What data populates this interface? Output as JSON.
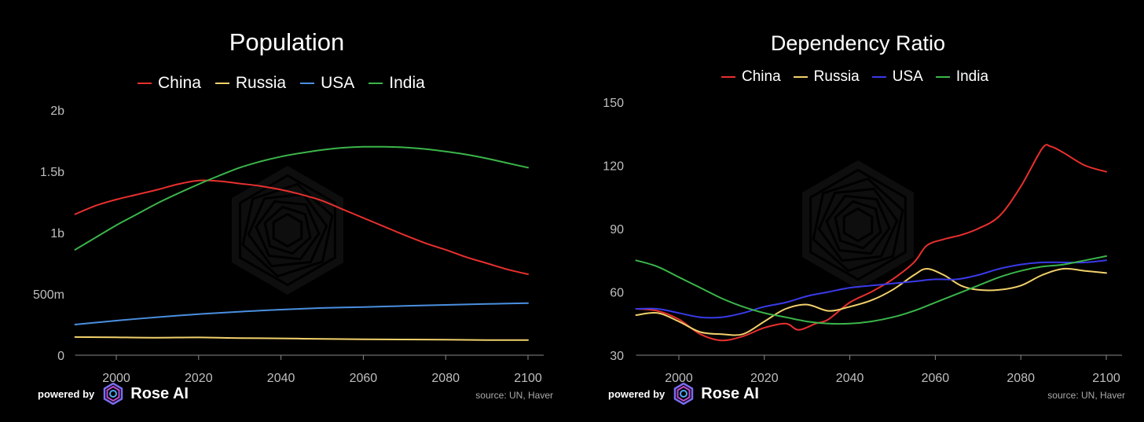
{
  "chart_data": [
    {
      "type": "line",
      "title": "Population",
      "xlabel": "",
      "ylabel": "",
      "xlim": [
        1990,
        2104
      ],
      "ylim": [
        0,
        2000
      ],
      "x_ticks": [
        2000,
        2020,
        2040,
        2060,
        2080,
        2100
      ],
      "y_ticks": [
        0,
        500,
        1000,
        1500,
        2000
      ],
      "y_tick_labels": [
        "0",
        "500m",
        "1b",
        "1.5b",
        "2b"
      ],
      "x_tick_labels": [
        "2000",
        "2020",
        "2040",
        "2060",
        "2080",
        "2100"
      ],
      "series": [
        {
          "name": "China",
          "color": "#e8302e",
          "x": [
            1990,
            1995,
            2000,
            2005,
            2010,
            2015,
            2020,
            2025,
            2030,
            2035,
            2040,
            2045,
            2050,
            2055,
            2060,
            2065,
            2070,
            2075,
            2080,
            2085,
            2090,
            2095,
            2100
          ],
          "values": [
            1150,
            1220,
            1270,
            1310,
            1350,
            1395,
            1425,
            1420,
            1400,
            1380,
            1350,
            1310,
            1260,
            1190,
            1120,
            1050,
            980,
            915,
            860,
            800,
            750,
            700,
            660
          ]
        },
        {
          "name": "Russia",
          "color": "#f2d16b",
          "x": [
            1990,
            2000,
            2010,
            2020,
            2030,
            2040,
            2050,
            2060,
            2070,
            2080,
            2090,
            2100
          ],
          "values": [
            148,
            146,
            143,
            145,
            140,
            137,
            133,
            130,
            128,
            126,
            124,
            123
          ]
        },
        {
          "name": "USA",
          "color": "#4a8fe0",
          "x": [
            1990,
            2000,
            2010,
            2020,
            2030,
            2040,
            2050,
            2060,
            2070,
            2080,
            2090,
            2100
          ],
          "values": [
            250,
            282,
            310,
            335,
            355,
            372,
            385,
            393,
            402,
            410,
            418,
            425
          ]
        },
        {
          "name": "India",
          "color": "#3bb54a",
          "x": [
            1990,
            1995,
            2000,
            2005,
            2010,
            2015,
            2020,
            2025,
            2030,
            2035,
            2040,
            2045,
            2050,
            2055,
            2060,
            2065,
            2070,
            2075,
            2080,
            2085,
            2090,
            2095,
            2100
          ],
          "values": [
            860,
            960,
            1060,
            1150,
            1240,
            1320,
            1395,
            1465,
            1530,
            1580,
            1620,
            1650,
            1675,
            1692,
            1700,
            1700,
            1695,
            1682,
            1662,
            1637,
            1605,
            1567,
            1530
          ]
        }
      ],
      "legend": "top"
    },
    {
      "type": "line",
      "title": "Dependency Ratio",
      "xlabel": "",
      "ylabel": "",
      "xlim": [
        1990,
        2102
      ],
      "ylim": [
        30,
        150
      ],
      "x_ticks": [
        2000,
        2020,
        2040,
        2060,
        2080,
        2100
      ],
      "y_ticks": [
        30,
        60,
        90,
        120,
        150
      ],
      "y_tick_labels": [
        "30",
        "60",
        "90",
        "120",
        "150"
      ],
      "x_tick_labels": [
        "2000",
        "2020",
        "2040",
        "2060",
        "2080",
        "2100"
      ],
      "series": [
        {
          "name": "China",
          "color": "#e8302e",
          "x": [
            1990,
            1995,
            2000,
            2005,
            2010,
            2015,
            2020,
            2025,
            2028,
            2032,
            2035,
            2040,
            2045,
            2050,
            2055,
            2058,
            2062,
            2066,
            2070,
            2075,
            2080,
            2085,
            2087,
            2090,
            2095,
            2100
          ],
          "values": [
            52,
            51,
            47,
            40,
            37,
            39,
            43,
            45,
            42,
            45,
            47,
            55,
            60,
            66,
            74,
            82,
            85,
            87,
            90,
            96,
            110,
            128,
            129,
            126,
            120,
            117
          ]
        },
        {
          "name": "Russia",
          "color": "#f2d16b",
          "x": [
            1990,
            1995,
            2000,
            2005,
            2010,
            2015,
            2020,
            2025,
            2030,
            2035,
            2040,
            2045,
            2050,
            2055,
            2058,
            2062,
            2066,
            2070,
            2075,
            2080,
            2085,
            2090,
            2095,
            2100
          ],
          "values": [
            49,
            50,
            46,
            41,
            40,
            40,
            46,
            52,
            54,
            51,
            53,
            56,
            61,
            68,
            71,
            68,
            63,
            61,
            61,
            63,
            68,
            71,
            70,
            69
          ]
        },
        {
          "name": "USA",
          "color": "#3a3ae8",
          "x": [
            1990,
            1995,
            2000,
            2005,
            2010,
            2015,
            2020,
            2025,
            2030,
            2035,
            2040,
            2045,
            2050,
            2055,
            2060,
            2065,
            2070,
            2075,
            2080,
            2085,
            2090,
            2095,
            2100
          ],
          "values": [
            52,
            52,
            50,
            48,
            48,
            50,
            53,
            55,
            58,
            60,
            62,
            63,
            64,
            65,
            66,
            66,
            68,
            71,
            73,
            74,
            74,
            74,
            75
          ]
        },
        {
          "name": "India",
          "color": "#3bb54a",
          "x": [
            1990,
            1995,
            2000,
            2005,
            2010,
            2015,
            2020,
            2025,
            2030,
            2035,
            2040,
            2045,
            2050,
            2055,
            2060,
            2065,
            2070,
            2075,
            2080,
            2085,
            2090,
            2095,
            2100
          ],
          "values": [
            75,
            72,
            67,
            62,
            57,
            53,
            50,
            48,
            46,
            45,
            45,
            46,
            48,
            51,
            55,
            59,
            63,
            67,
            70,
            72,
            73,
            75,
            77
          ]
        }
      ],
      "legend": "top"
    }
  ],
  "footer": {
    "powered_by": "powered by",
    "brand": "Rose AI",
    "source": "source: UN, Haver"
  }
}
